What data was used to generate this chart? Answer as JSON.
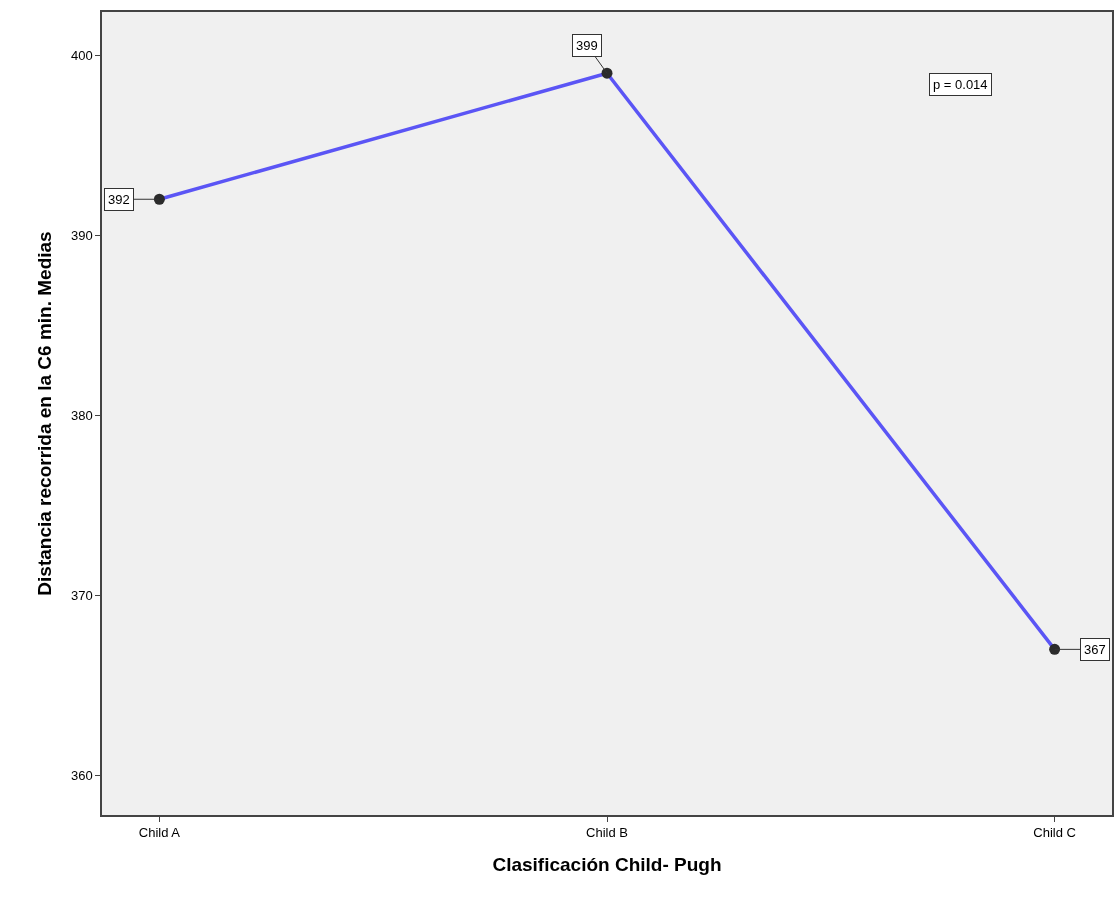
{
  "chart_data": {
    "type": "line",
    "xlabel": "Clasificación Child- Pugh",
    "ylabel": "Distancia recorrida en la C6 min. Medias",
    "categories": [
      "Child A",
      "Child B",
      "Child C"
    ],
    "series": [
      {
        "color": "#5b55f5",
        "values": [
          392,
          399,
          367
        ]
      }
    ],
    "data_labels": true,
    "marker": "circle",
    "line_style": "solid",
    "ylim": [
      357.8,
      402.4
    ],
    "yticks": [
      360,
      370,
      380,
      390,
      400
    ],
    "grid": false,
    "annotations": [
      "p = 0.014"
    ]
  }
}
